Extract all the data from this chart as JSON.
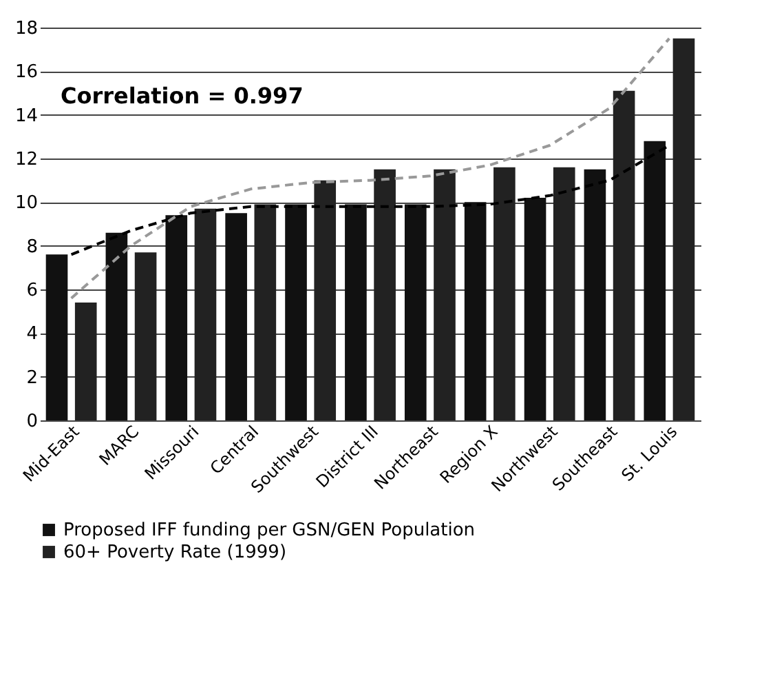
{
  "chart_data": {
    "type": "bar",
    "categories": [
      "Mid-East",
      "MARC",
      "Missouri",
      "Central",
      "Southwest",
      "District III",
      "Northeast",
      "Region X",
      "Northwest",
      "Southeast",
      "St. Louis"
    ],
    "series": [
      {
        "name": "Proposed IFF funding per GSN/GEN Population",
        "color": "#111111",
        "values": [
          7.6,
          8.6,
          9.4,
          9.5,
          9.9,
          9.9,
          9.9,
          10.0,
          10.2,
          11.5,
          12.8
        ]
      },
      {
        "name": "60+ Poverty Rate (1999)",
        "color": "#222222",
        "values": [
          5.4,
          7.7,
          9.7,
          9.9,
          11.0,
          11.5,
          11.5,
          11.6,
          11.6,
          15.1,
          17.5
        ]
      },
      {
        "type": "line",
        "line_style": "dashed",
        "color": "#000000",
        "values": [
          7.6,
          8.7,
          9.5,
          9.8,
          9.8,
          9.8,
          9.8,
          9.9,
          10.3,
          11.0,
          12.6
        ]
      },
      {
        "type": "line",
        "line_style": "dashed",
        "color": "#999999",
        "values": [
          5.6,
          8.0,
          9.8,
          10.6,
          10.9,
          11.0,
          11.2,
          11.7,
          12.6,
          14.3,
          17.5
        ]
      }
    ],
    "ylim": [
      0,
      18
    ],
    "yticks": [
      0,
      2,
      4,
      6,
      8,
      10,
      12,
      14,
      16,
      18
    ],
    "grid": "y",
    "legend": "bottom",
    "annotations": [
      "Correlation = 0.997"
    ]
  }
}
